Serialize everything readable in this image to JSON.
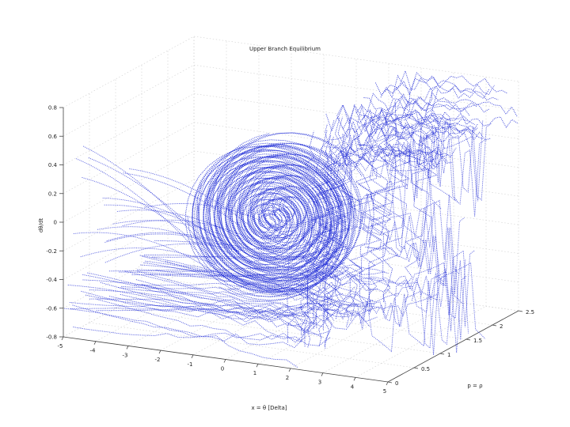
{
  "chart_data": {
    "type": "line",
    "title": "Upper Branch Equilibrium",
    "xlabel": "x = θ [Delta]",
    "ylabel": "dθ/dt",
    "zlabel": "p = ρ",
    "x_ticks": [
      "-5",
      "-4",
      "-3",
      "-2",
      "-1",
      "0",
      "1",
      "2",
      "3",
      "4",
      "5"
    ],
    "y_ticks": [
      "0.8",
      "0.6",
      "0.4",
      "0.2",
      "0",
      "-0.2",
      "-0.4",
      "-0.6",
      "-0.8"
    ],
    "z_ticks": [
      "0",
      "0.5",
      "1",
      "1.5",
      "2",
      "2.5"
    ],
    "xlim": [
      -5,
      5
    ],
    "ylim": [
      -0.8,
      0.8
    ],
    "zlim": [
      0,
      2.5
    ],
    "grid": true,
    "series_color": "#1f2bd6",
    "series": [
      {
        "kind": "spiral-focus",
        "center": [
          0,
          0,
          1.0
        ],
        "turns": 7
      },
      {
        "kind": "lower-sheet",
        "y_level": -0.6,
        "count": 40
      },
      {
        "kind": "upper-sheet",
        "y_level": 0.75,
        "count": 28
      },
      {
        "kind": "separatrix-fold",
        "x_level": 2.0,
        "count": 24
      }
    ]
  }
}
